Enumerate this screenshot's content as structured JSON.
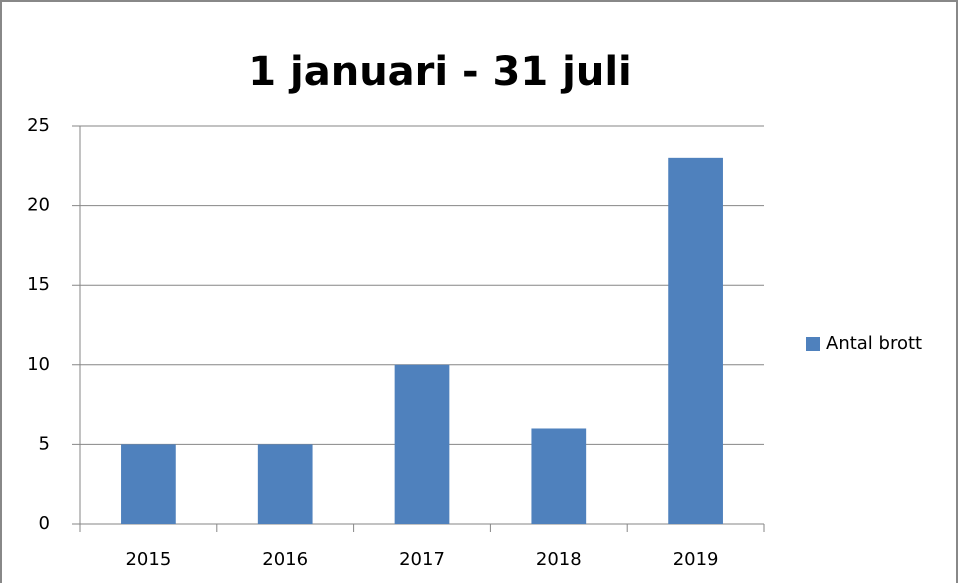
{
  "chart_data": {
    "type": "bar",
    "title": "1 januari - 31 juli",
    "categories": [
      "2015",
      "2016",
      "2017",
      "2018",
      "2019"
    ],
    "series": [
      {
        "name": "Antal brott",
        "color": "#4f81bd",
        "values": [
          5,
          5,
          10,
          6,
          23
        ]
      }
    ],
    "ylim": [
      0,
      25
    ],
    "yticks": [
      0,
      5,
      10,
      15,
      20,
      25
    ],
    "grid": true,
    "legend": "right"
  }
}
